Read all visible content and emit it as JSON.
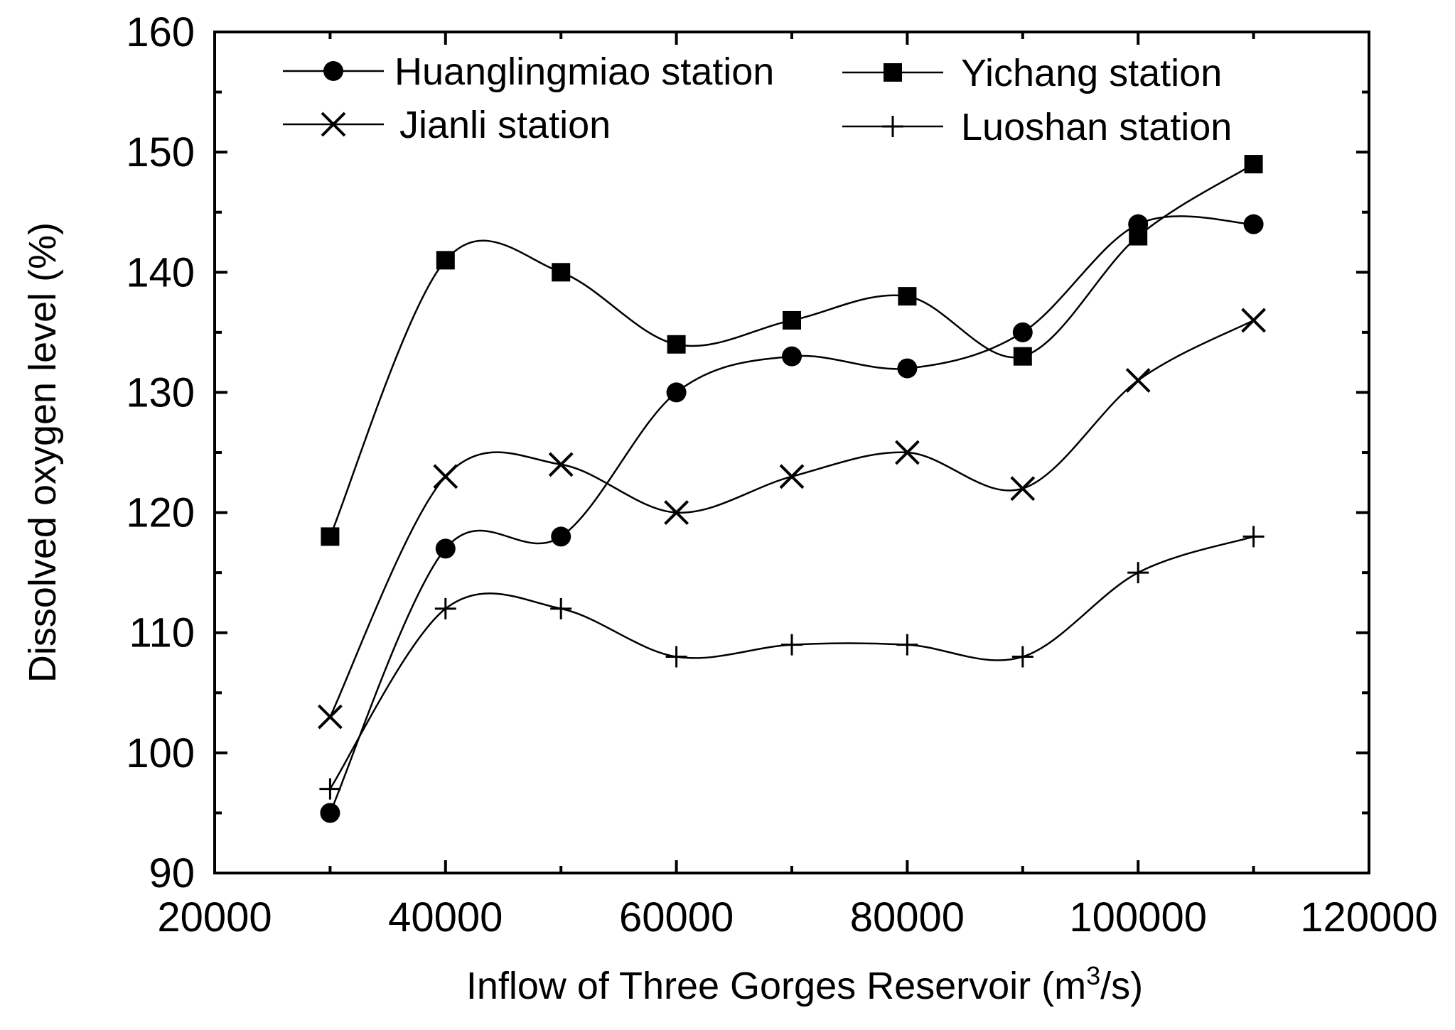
{
  "chart_data": {
    "type": "line",
    "xlabel": "Inflow of Three Gorges Reservoir (m",
    "xlabel_sup": "3",
    "xlabel_end": "/s)",
    "ylabel": "Dissolved oxygen level (%)",
    "xlim": [
      20000,
      120000
    ],
    "ylim": [
      90,
      160
    ],
    "xticks": [
      20000,
      40000,
      60000,
      80000,
      100000,
      120000
    ],
    "yticks": [
      90,
      100,
      110,
      120,
      130,
      140,
      150,
      160
    ],
    "grid": false,
    "legend_position": "top",
    "x": [
      30000,
      40000,
      50000,
      60000,
      70000,
      80000,
      90000,
      100000,
      110000
    ],
    "series": [
      {
        "name": "Huanglingmiao station",
        "marker": "circle",
        "values": [
          95,
          117,
          118,
          130,
          133,
          132,
          135,
          144,
          144
        ]
      },
      {
        "name": "Yichang station",
        "marker": "square",
        "values": [
          118,
          141,
          140,
          134,
          136,
          138,
          133,
          143,
          149
        ]
      },
      {
        "name": "Jianli station",
        "marker": "x",
        "values": [
          103,
          123,
          124,
          120,
          123,
          125,
          122,
          131,
          136
        ]
      },
      {
        "name": "Luoshan station",
        "marker": "plus",
        "values": [
          97,
          112,
          112,
          108,
          109,
          109,
          108,
          115,
          118
        ]
      }
    ],
    "colors": {
      "line": "#000000",
      "background": "#ffffff"
    }
  }
}
